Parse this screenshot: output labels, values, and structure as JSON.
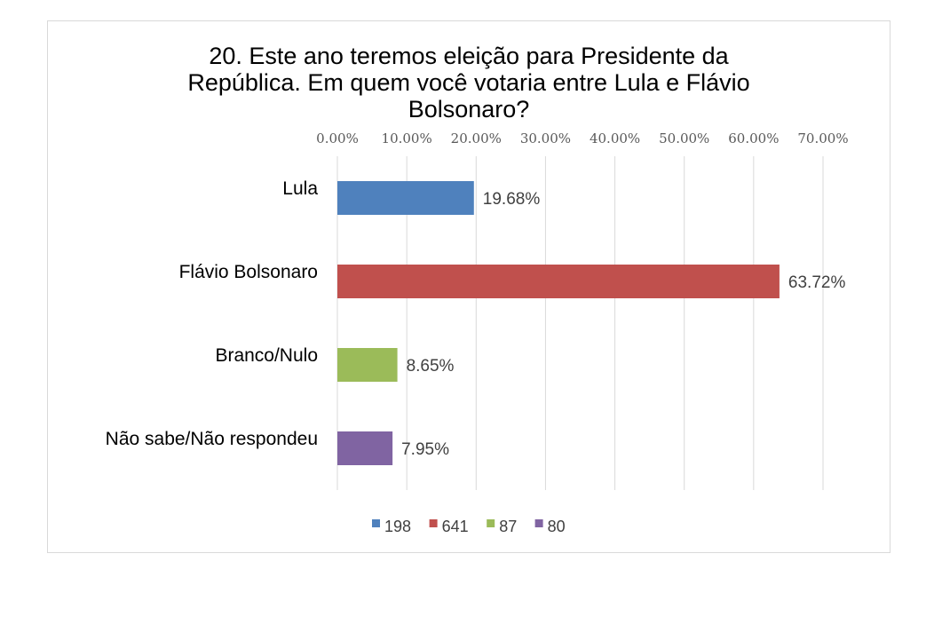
{
  "chart_data": {
    "type": "bar",
    "orientation": "horizontal",
    "title_lines": [
      "20. Este ano teremos eleição para Presidente da",
      "República. Em quem você votaria entre Lula e Flávio",
      "Bolsonaro?"
    ],
    "categories": [
      "Lula",
      "Flávio Bolsonaro",
      "Branco/Nulo",
      "Não sabe/Não respondeu"
    ],
    "values": [
      19.68,
      63.72,
      8.65,
      7.95
    ],
    "data_labels": [
      "19.68%",
      "63.72%",
      "8.65%",
      "7.95%"
    ],
    "colors": [
      "#4f81bd",
      "#c0504d",
      "#9bbb59",
      "#8064a2"
    ],
    "xlim": [
      0,
      70
    ],
    "x_ticks": [
      0,
      10,
      20,
      30,
      40,
      50,
      60,
      70
    ],
    "x_tick_labels": [
      "0.00%",
      "10.00%",
      "20.00%",
      "30.00%",
      "40.00%",
      "50.00%",
      "60.00%",
      "70.00%"
    ],
    "x_axis_position": "top",
    "grid": true,
    "legend": {
      "position": "bottom",
      "entries": [
        "198",
        "641",
        "87",
        "80"
      ]
    }
  }
}
